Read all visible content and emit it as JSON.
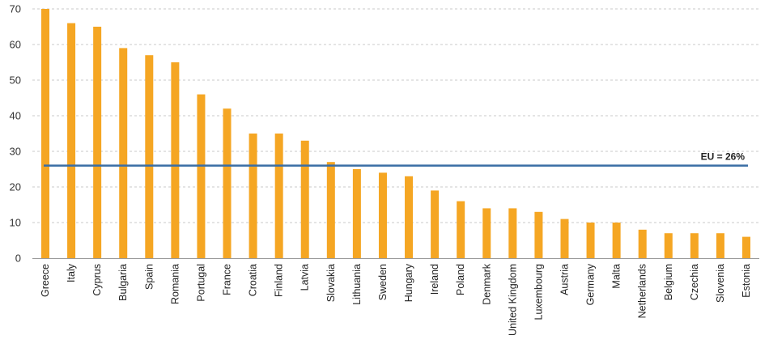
{
  "chart_data": {
    "type": "bar",
    "categories": [
      "Greece",
      "Italy",
      "Cyprus",
      "Bulgaria",
      "Spain",
      "Romania",
      "Portugal",
      "France",
      "Croatia",
      "Finland",
      "Latvia",
      "Slovakia",
      "Lithuania",
      "Sweden",
      "Hungary",
      "Ireland",
      "Poland",
      "Denmark",
      "United Kingdom",
      "Luxembourg",
      "Austria",
      "Germany",
      "Malta",
      "Netherlands",
      "Belgium",
      "Czechia",
      "Slovenia",
      "Estonia"
    ],
    "values": [
      70,
      66,
      65,
      59,
      57,
      55,
      46,
      42,
      35,
      35,
      33,
      27,
      25,
      24,
      23,
      19,
      16,
      14,
      14,
      13,
      11,
      10,
      10,
      8,
      7,
      7,
      7,
      6
    ],
    "title": "",
    "xlabel": "",
    "ylabel": "",
    "ylim": [
      0,
      70
    ],
    "yticks": [
      0,
      10,
      20,
      30,
      40,
      50,
      60,
      70
    ],
    "grid": true,
    "bar_color": "#F5A623",
    "reference_line": {
      "value": 26,
      "label": "EU = 26%",
      "color": "#3A6EA5"
    }
  }
}
